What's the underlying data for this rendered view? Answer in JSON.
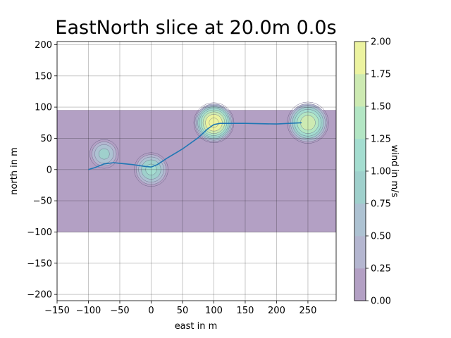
{
  "chart_data": {
    "type": "contourf",
    "title": "EastNorth slice at 20.0m 0.0s",
    "xlabel": "east in m",
    "ylabel": "north in m",
    "xlim": [
      -150,
      295
    ],
    "ylim": [
      -210,
      205
    ],
    "xticks": [
      -150,
      -100,
      -50,
      0,
      50,
      100,
      150,
      200,
      250
    ],
    "yticks": [
      -200,
      -150,
      -100,
      -50,
      0,
      50,
      100,
      150,
      200
    ],
    "grid": true,
    "field_extent": {
      "x": [
        -150,
        295
      ],
      "y": [
        -100,
        95
      ]
    },
    "colorbar": {
      "label": "wind in m/s",
      "levels": [
        0.0,
        0.25,
        0.5,
        0.75,
        1.0,
        1.25,
        1.5,
        1.75,
        2.0
      ],
      "colors": [
        "#b3a0c4",
        "#b4b6d0",
        "#adc2d2",
        "#9fd0cc",
        "#a4ddd0",
        "#b3e6c4",
        "#cdeab2",
        "#ecf3a0"
      ]
    },
    "peaks": [
      {
        "x": -75,
        "y": 25,
        "radius": 23,
        "peak": 0.75
      },
      {
        "x": 0,
        "y": 0,
        "radius": 27,
        "peak": 1.0
      },
      {
        "x": 100,
        "y": 75,
        "radius": 32,
        "peak": 2.0
      },
      {
        "x": 250,
        "y": 75,
        "radius": 33,
        "peak": 1.6
      }
    ],
    "series": [
      {
        "type": "line",
        "color": "#1f77b4",
        "x": [
          -100,
          -90,
          -75,
          -60,
          -50,
          -30,
          -10,
          0,
          10,
          25,
          50,
          75,
          90,
          100,
          110,
          150,
          200,
          240
        ],
        "y": [
          0,
          3,
          9,
          11,
          10,
          8,
          5,
          4,
          8,
          18,
          33,
          51,
          65,
          72,
          74,
          74,
          73,
          75
        ]
      }
    ]
  }
}
